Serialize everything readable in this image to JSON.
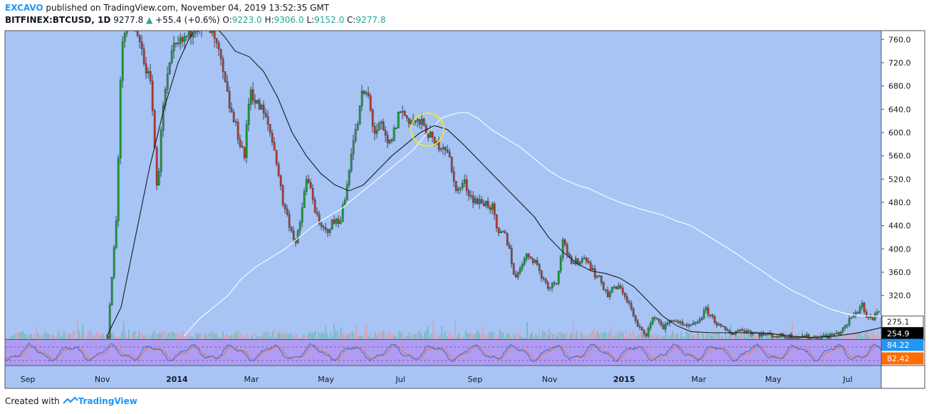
{
  "header": {
    "author": "EXCAVO",
    "published": "published on TradingView.com, November 04, 2019 13:52:35 GMT",
    "symbol": "BITFINEX:BTCUSD, 1D",
    "last": "9277.8",
    "change": "+55.4 (+0.6%)",
    "o_label": "O:",
    "o_value": "9223.0",
    "h_label": "H:",
    "h_value": "9306.0",
    "l_label": "L:",
    "l_value": "9152.0",
    "c_label": "C:",
    "c_value": "9277.8"
  },
  "footer": {
    "created": "Created with",
    "brand": "TradingView"
  },
  "colors": {
    "background": "#a8c4f5",
    "up_candle": "#1b9e35",
    "down_candle": "#b83a2e",
    "ma_short": "#1a1a1a",
    "ma_long": "#ffffff",
    "rsi_panel": "#b09cf2",
    "highlight_circle": "#ffee00",
    "badge_blue": "#2196f3",
    "badge_orange": "#ff6d00"
  },
  "chart_data": {
    "type": "candlestick",
    "x_ticks": [
      "Sep",
      "Nov",
      "2014",
      "Mar",
      "May",
      "Jul",
      "Sep",
      "Nov",
      "2015",
      "Mar",
      "May",
      "Jul"
    ],
    "y_ticks": [
      "760.0",
      "720.0",
      "680.0",
      "640.0",
      "600.0",
      "560.0",
      "520.0",
      "480.0",
      "440.0",
      "400.0",
      "360.0",
      "320.0"
    ],
    "ylim": [
      245,
      775
    ],
    "price_path": [
      [
        150,
        250
      ],
      [
        154,
        320
      ],
      [
        158,
        380
      ],
      [
        162,
        450
      ],
      [
        166,
        600
      ],
      [
        170,
        760
      ],
      [
        182,
        800
      ],
      [
        198,
        740
      ],
      [
        212,
        670
      ],
      [
        220,
        480
      ],
      [
        224,
        600
      ],
      [
        232,
        680
      ],
      [
        242,
        740
      ],
      [
        258,
        760
      ],
      [
        275,
        790
      ],
      [
        292,
        780
      ],
      [
        305,
        740
      ],
      [
        315,
        680
      ],
      [
        322,
        640
      ],
      [
        332,
        600
      ],
      [
        342,
        560
      ],
      [
        350,
        680
      ],
      [
        358,
        650
      ],
      [
        366,
        640
      ],
      [
        376,
        610
      ],
      [
        386,
        560
      ],
      [
        396,
        480
      ],
      [
        406,
        440
      ],
      [
        414,
        410
      ],
      [
        420,
        440
      ],
      [
        428,
        520
      ],
      [
        436,
        500
      ],
      [
        446,
        440
      ],
      [
        456,
        430
      ],
      [
        466,
        445
      ],
      [
        476,
        450
      ],
      [
        484,
        490
      ],
      [
        492,
        570
      ],
      [
        500,
        610
      ],
      [
        508,
        670
      ],
      [
        516,
        660
      ],
      [
        524,
        600
      ],
      [
        534,
        610
      ],
      [
        544,
        575
      ],
      [
        552,
        600
      ],
      [
        560,
        640
      ],
      [
        570,
        625
      ],
      [
        580,
        618
      ],
      [
        590,
        615
      ],
      [
        600,
        600
      ],
      [
        608,
        578
      ],
      [
        620,
        580
      ],
      [
        628,
        570
      ],
      [
        634,
        520
      ],
      [
        642,
        500
      ],
      [
        650,
        515
      ],
      [
        660,
        490
      ],
      [
        670,
        480
      ],
      [
        680,
        480
      ],
      [
        690,
        470
      ],
      [
        698,
        420
      ],
      [
        706,
        430
      ],
      [
        714,
        400
      ],
      [
        722,
        345
      ],
      [
        730,
        375
      ],
      [
        740,
        390
      ],
      [
        750,
        380
      ],
      [
        760,
        350
      ],
      [
        770,
        335
      ],
      [
        780,
        345
      ],
      [
        790,
        420
      ],
      [
        800,
        370
      ],
      [
        810,
        380
      ],
      [
        822,
        385
      ],
      [
        832,
        360
      ],
      [
        842,
        345
      ],
      [
        852,
        320
      ],
      [
        862,
        335
      ],
      [
        872,
        330
      ],
      [
        882,
        305
      ],
      [
        894,
        265
      ],
      [
        906,
        255
      ],
      [
        918,
        285
      ],
      [
        930,
        265
      ],
      [
        945,
        280
      ],
      [
        960,
        265
      ],
      [
        975,
        270
      ],
      [
        990,
        295
      ],
      [
        1000,
        280
      ],
      [
        1010,
        265
      ],
      [
        1025,
        255
      ],
      [
        1040,
        262
      ],
      [
        1060,
        255
      ],
      [
        1080,
        252
      ],
      [
        1100,
        250
      ],
      [
        1120,
        250
      ],
      [
        1140,
        248
      ],
      [
        1160,
        250
      ],
      [
        1175,
        255
      ],
      [
        1185,
        265
      ],
      [
        1195,
        285
      ],
      [
        1202,
        290
      ],
      [
        1208,
        310
      ],
      [
        1215,
        282
      ],
      [
        1225,
        282
      ],
      [
        1235,
        292
      ]
    ],
    "ma_short_path": [
      [
        150,
        250
      ],
      [
        170,
        300
      ],
      [
        190,
        420
      ],
      [
        210,
        540
      ],
      [
        230,
        640
      ],
      [
        250,
        720
      ],
      [
        265,
        760
      ],
      [
        280,
        790
      ],
      [
        300,
        785
      ],
      [
        315,
        765
      ],
      [
        330,
        740
      ],
      [
        350,
        730
      ],
      [
        370,
        705
      ],
      [
        390,
        660
      ],
      [
        410,
        600
      ],
      [
        430,
        560
      ],
      [
        450,
        530
      ],
      [
        470,
        510
      ],
      [
        490,
        500
      ],
      [
        510,
        510
      ],
      [
        530,
        535
      ],
      [
        550,
        560
      ],
      [
        570,
        580
      ],
      [
        590,
        600
      ],
      [
        610,
        612
      ],
      [
        628,
        605
      ],
      [
        650,
        580
      ],
      [
        670,
        555
      ],
      [
        690,
        530
      ],
      [
        710,
        505
      ],
      [
        730,
        480
      ],
      [
        750,
        455
      ],
      [
        770,
        420
      ],
      [
        790,
        395
      ],
      [
        810,
        375
      ],
      [
        830,
        362
      ],
      [
        850,
        358
      ],
      [
        870,
        350
      ],
      [
        890,
        335
      ],
      [
        910,
        310
      ],
      [
        930,
        285
      ],
      [
        950,
        268
      ],
      [
        970,
        258
      ],
      [
        1000,
        256
      ],
      [
        1040,
        256
      ],
      [
        1080,
        255
      ],
      [
        1110,
        250
      ],
      [
        1140,
        248
      ],
      [
        1170,
        250
      ],
      [
        1200,
        255
      ],
      [
        1220,
        260
      ],
      [
        1237,
        265
      ]
    ],
    "ma_long_path": [
      [
        258,
        250
      ],
      [
        280,
        280
      ],
      [
        300,
        300
      ],
      [
        320,
        320
      ],
      [
        340,
        350
      ],
      [
        360,
        370
      ],
      [
        380,
        385
      ],
      [
        400,
        400
      ],
      [
        420,
        420
      ],
      [
        440,
        440
      ],
      [
        460,
        455
      ],
      [
        480,
        470
      ],
      [
        500,
        490
      ],
      [
        520,
        510
      ],
      [
        540,
        530
      ],
      [
        560,
        550
      ],
      [
        580,
        570
      ],
      [
        600,
        600
      ],
      [
        620,
        625
      ],
      [
        640,
        633
      ],
      [
        655,
        635
      ],
      [
        670,
        625
      ],
      [
        690,
        605
      ],
      [
        710,
        590
      ],
      [
        730,
        575
      ],
      [
        750,
        555
      ],
      [
        770,
        535
      ],
      [
        790,
        520
      ],
      [
        810,
        510
      ],
      [
        830,
        502
      ],
      [
        850,
        490
      ],
      [
        870,
        480
      ],
      [
        890,
        472
      ],
      [
        910,
        465
      ],
      [
        930,
        458
      ],
      [
        950,
        448
      ],
      [
        970,
        440
      ],
      [
        990,
        425
      ],
      [
        1010,
        410
      ],
      [
        1030,
        395
      ],
      [
        1050,
        378
      ],
      [
        1070,
        362
      ],
      [
        1090,
        345
      ],
      [
        1110,
        330
      ],
      [
        1130,
        318
      ],
      [
        1150,
        305
      ],
      [
        1170,
        295
      ],
      [
        1190,
        288
      ],
      [
        1210,
        285
      ],
      [
        1237,
        284
      ]
    ],
    "highlight": {
      "x": 600,
      "y": 605,
      "r": 23
    },
    "rsi": {
      "upper": 84.22,
      "lower": 82.42
    },
    "price_badges": [
      {
        "value": "275.1",
        "y": 275.1,
        "style": "white"
      },
      {
        "value": "254.9",
        "y": 254.9,
        "style": "black"
      }
    ],
    "rsi_badges": [
      {
        "value": "84.22",
        "style": "blue"
      },
      {
        "value": "82.42",
        "style": "orange"
      }
    ]
  }
}
